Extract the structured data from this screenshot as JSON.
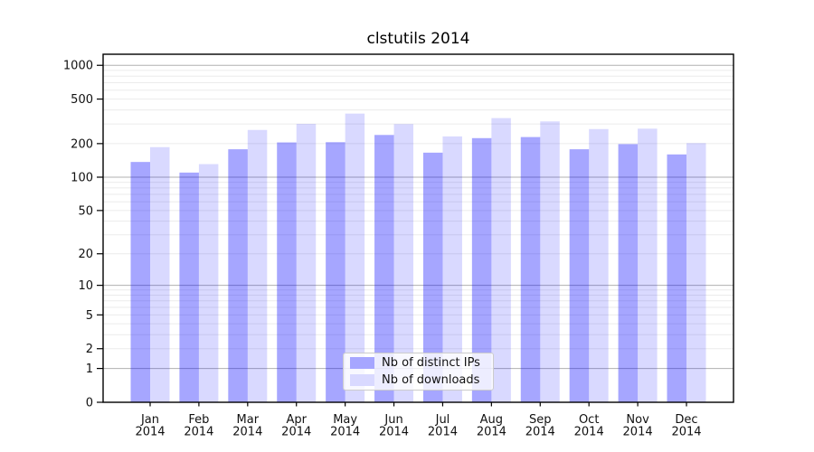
{
  "chart_data": {
    "type": "bar",
    "title": "clstutils 2014",
    "categories": [
      "Jan",
      "Feb",
      "Mar",
      "Apr",
      "May",
      "Jun",
      "Jul",
      "Aug",
      "Sep",
      "Oct",
      "Nov",
      "Dec"
    ],
    "category_year": "2014",
    "series": [
      {
        "name": "Nb of distinct IPs",
        "swatch_color": "#a6a6ff",
        "fill": "rgba(0,0,255,0.35)",
        "values": [
          137,
          110,
          178,
          205,
          206,
          239,
          166,
          224,
          229,
          178,
          198,
          160
        ]
      },
      {
        "name": "Nb of downloads",
        "swatch_color": "#d9d9ff",
        "fill": "rgba(0,0,255,0.15)",
        "values": [
          186,
          131,
          265,
          300,
          371,
          299,
          232,
          338,
          316,
          270,
          272,
          202
        ]
      }
    ],
    "yscale": "log1p",
    "ylim": [
      0,
      1255
    ],
    "yticks": [
      0,
      1,
      2,
      5,
      10,
      20,
      50,
      100,
      200,
      500,
      1000
    ],
    "gridlines": {
      "major": [
        1,
        10,
        100,
        1000
      ],
      "minor": [
        2,
        3,
        4,
        5,
        6,
        7,
        8,
        9,
        20,
        30,
        40,
        50,
        60,
        70,
        80,
        90,
        200,
        300,
        400,
        500,
        600,
        700,
        800,
        900
      ]
    },
    "grid": true,
    "legend_position": "lower center",
    "colors": {
      "major_grid": "#b0b0b0",
      "minor_grid": "#ebebeb",
      "spine": "#000000",
      "text": "#111111"
    }
  }
}
